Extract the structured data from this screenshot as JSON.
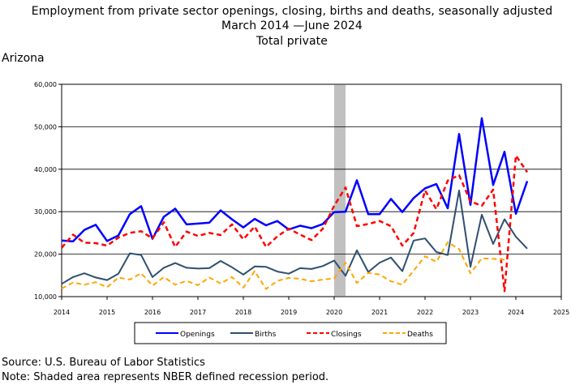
{
  "title_line1": "Employment from private sector openings, closing, births and deaths, seasonally adjusted",
  "title_line2_left": "March 2014",
  "title_line2_right": "June 2024",
  "title_line3": "Total private",
  "region_label": "Arizona",
  "source": "Source: U.S. Bureau of Labor Statistics",
  "note": "Note: Shaded area represents NBER defined recession period.",
  "chart_data": {
    "type": "line",
    "title": "Employment from private sector openings, closing, births and deaths, seasonally adjusted",
    "subtitle": "March 2014 —June 2024, Total private",
    "xlabel": "",
    "ylabel": "",
    "xlim": [
      2014,
      2025
    ],
    "ylim": [
      10000,
      60000
    ],
    "x_ticks": [
      2014,
      2015,
      2016,
      2017,
      2018,
      2019,
      2020,
      2021,
      2022,
      2023,
      2024,
      2025
    ],
    "y_ticks": [
      10000,
      20000,
      30000,
      40000,
      50000,
      60000
    ],
    "y_tick_labels": [
      "10,000",
      "20,000",
      "30,000",
      "40,000",
      "50,000",
      "60,000"
    ],
    "grid": "horizontal",
    "legend_position": "bottom",
    "recession": {
      "start": 2020.0,
      "end": 2020.25,
      "color": "#c0c0c0"
    },
    "x": [
      2014.0,
      2014.25,
      2014.5,
      2014.75,
      2015.0,
      2015.25,
      2015.5,
      2015.75,
      2016.0,
      2016.25,
      2016.5,
      2016.75,
      2017.0,
      2017.25,
      2017.5,
      2017.75,
      2018.0,
      2018.25,
      2018.5,
      2018.75,
      2019.0,
      2019.25,
      2019.5,
      2019.75,
      2020.0,
      2020.25,
      2020.5,
      2020.75,
      2021.0,
      2021.25,
      2021.5,
      2021.75,
      2022.0,
      2022.25,
      2022.5,
      2022.75,
      2023.0,
      2023.25,
      2023.5,
      2023.75,
      2024.0,
      2024.25
    ],
    "series": [
      {
        "name": "Openings",
        "color": "#0000ff",
        "dash": "",
        "width": 2.5,
        "values": [
          23200,
          23000,
          25700,
          26900,
          23100,
          24400,
          29400,
          31300,
          23600,
          28800,
          30700,
          27000,
          27200,
          27400,
          30300,
          28200,
          26300,
          28300,
          26800,
          27800,
          25800,
          26700,
          26100,
          27100,
          29900,
          30000,
          37400,
          29400,
          29400,
          33000,
          29900,
          33200,
          35500,
          36500,
          30800,
          48300,
          31600,
          52000,
          36300,
          44100,
          29500,
          37200
        ]
      },
      {
        "name": "Births",
        "color": "#2f4f6f",
        "dash": "",
        "width": 2,
        "values": [
          13000,
          14600,
          15500,
          14500,
          13900,
          15400,
          20200,
          19800,
          14600,
          16800,
          17900,
          16800,
          16600,
          16700,
          18400,
          16900,
          15200,
          17100,
          17000,
          15900,
          15400,
          16700,
          16500,
          17200,
          18500,
          14900,
          20900,
          15800,
          18000,
          19200,
          16000,
          23200,
          23700,
          20500,
          19800,
          35000,
          17000,
          29300,
          22400,
          28200,
          24100,
          21300
        ]
      },
      {
        "name": "Closings",
        "color": "#ff0000",
        "dash": "6,4",
        "width": 2.5,
        "values": [
          21500,
          24600,
          22700,
          22600,
          22000,
          23900,
          25000,
          25400,
          23700,
          27500,
          21700,
          25300,
          24300,
          25000,
          24500,
          27000,
          23500,
          26500,
          21700,
          24200,
          26000,
          24600,
          23300,
          26000,
          31400,
          35700,
          26600,
          27100,
          27800,
          26600,
          22000,
          25000,
          35000,
          30600,
          37300,
          38600,
          32400,
          31400,
          35200,
          11300,
          43200,
          39300
        ]
      },
      {
        "name": "Deaths",
        "color": "#ffa500",
        "dash": "6,4",
        "width": 2,
        "values": [
          11900,
          13300,
          12800,
          13400,
          12200,
          14500,
          14000,
          15500,
          12600,
          14600,
          12800,
          13700,
          12700,
          14500,
          13100,
          14600,
          12100,
          16000,
          11800,
          13700,
          14400,
          14200,
          13600,
          14000,
          14300,
          18000,
          13200,
          15600,
          15200,
          13600,
          12800,
          16100,
          19500,
          18200,
          22800,
          21200,
          15500,
          19000,
          18900,
          18700,
          null,
          null
        ]
      }
    ]
  }
}
